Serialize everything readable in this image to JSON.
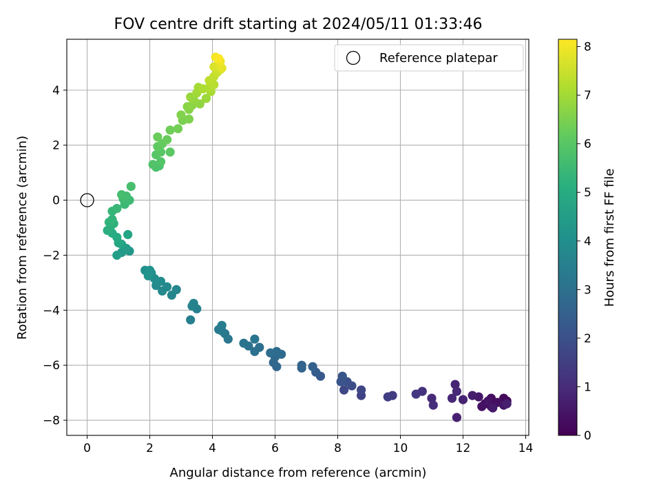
{
  "chart_data": {
    "type": "scatter",
    "title": "FOV centre drift starting at 2024/05/11 01:33:46",
    "xlabel": "Angular distance from reference (arcmin)",
    "ylabel": "Rotation from reference (arcmin)",
    "xlim": [
      -0.65,
      14.1
    ],
    "ylim": [
      -8.55,
      5.85
    ],
    "xticks": [
      0,
      2,
      4,
      6,
      8,
      10,
      12,
      14
    ],
    "yticks": [
      -8,
      -6,
      -4,
      -2,
      0,
      2,
      4
    ],
    "grid": true,
    "legend": {
      "placement": "top-right",
      "entries": [
        "Reference platepar"
      ]
    },
    "reference_point": {
      "x": 0,
      "y": 0,
      "label": "Reference platepar",
      "marker": "open-circle"
    },
    "colorbar": {
      "label": "Hours from first FF file",
      "min": 0,
      "max": 8.15,
      "ticks": [
        0,
        1,
        2,
        3,
        4,
        5,
        6,
        7,
        8
      ],
      "colormap": "viridis"
    },
    "points": [
      {
        "x": 13.0,
        "y": -7.4,
        "h": 0.05
      },
      {
        "x": 13.4,
        "y": -7.3,
        "h": 0.1
      },
      {
        "x": 12.9,
        "y": -7.5,
        "h": 0.15
      },
      {
        "x": 13.3,
        "y": -7.2,
        "h": 0.2
      },
      {
        "x": 12.7,
        "y": -7.4,
        "h": 0.25
      },
      {
        "x": 12.9,
        "y": -7.2,
        "h": 0.3
      },
      {
        "x": 13.1,
        "y": -7.35,
        "h": 0.35
      },
      {
        "x": 12.6,
        "y": -7.5,
        "h": 0.4
      },
      {
        "x": 12.8,
        "y": -7.3,
        "h": 0.45
      },
      {
        "x": 13.3,
        "y": -7.45,
        "h": 0.5
      },
      {
        "x": 12.5,
        "y": -7.15,
        "h": 0.55
      },
      {
        "x": 12.95,
        "y": -7.55,
        "h": 0.6
      },
      {
        "x": 12.3,
        "y": -7.1,
        "h": 0.65
      },
      {
        "x": 13.4,
        "y": -7.4,
        "h": 0.7
      },
      {
        "x": 11.8,
        "y": -7.9,
        "h": 0.75
      },
      {
        "x": 12.0,
        "y": -7.25,
        "h": 0.8
      },
      {
        "x": 11.75,
        "y": -6.7,
        "h": 0.85
      },
      {
        "x": 11.65,
        "y": -7.2,
        "h": 0.9
      },
      {
        "x": 11.8,
        "y": -6.95,
        "h": 0.95
      },
      {
        "x": 11.0,
        "y": -7.2,
        "h": 1.0
      },
      {
        "x": 11.05,
        "y": -7.45,
        "h": 1.1
      },
      {
        "x": 10.7,
        "y": -6.95,
        "h": 1.2
      },
      {
        "x": 10.5,
        "y": -7.05,
        "h": 1.3
      },
      {
        "x": 9.75,
        "y": -7.1,
        "h": 1.4
      },
      {
        "x": 9.6,
        "y": -7.15,
        "h": 1.5
      },
      {
        "x": 8.75,
        "y": -7.1,
        "h": 1.6
      },
      {
        "x": 8.75,
        "y": -6.9,
        "h": 1.7
      },
      {
        "x": 8.2,
        "y": -6.9,
        "h": 1.8
      },
      {
        "x": 8.45,
        "y": -6.75,
        "h": 1.9
      },
      {
        "x": 8.3,
        "y": -6.6,
        "h": 2.0
      },
      {
        "x": 8.1,
        "y": -6.6,
        "h": 2.1
      },
      {
        "x": 8.15,
        "y": -6.4,
        "h": 2.2
      },
      {
        "x": 7.45,
        "y": -6.4,
        "h": 2.3
      },
      {
        "x": 7.3,
        "y": -6.25,
        "h": 2.4
      },
      {
        "x": 7.2,
        "y": -6.05,
        "h": 2.5
      },
      {
        "x": 6.85,
        "y": -6.1,
        "h": 2.6
      },
      {
        "x": 6.85,
        "y": -6.0,
        "h": 2.65
      },
      {
        "x": 6.05,
        "y": -6.05,
        "h": 2.7
      },
      {
        "x": 5.95,
        "y": -5.9,
        "h": 2.75
      },
      {
        "x": 6.0,
        "y": -5.7,
        "h": 2.8
      },
      {
        "x": 6.2,
        "y": -5.6,
        "h": 2.85
      },
      {
        "x": 6.05,
        "y": -5.5,
        "h": 2.9
      },
      {
        "x": 5.85,
        "y": -5.55,
        "h": 2.95
      },
      {
        "x": 5.5,
        "y": -5.35,
        "h": 3.0
      },
      {
        "x": 5.35,
        "y": -5.5,
        "h": 3.05
      },
      {
        "x": 5.15,
        "y": -5.3,
        "h": 3.1
      },
      {
        "x": 5.0,
        "y": -5.2,
        "h": 3.15
      },
      {
        "x": 5.35,
        "y": -5.05,
        "h": 3.2
      },
      {
        "x": 4.5,
        "y": -5.05,
        "h": 3.25
      },
      {
        "x": 4.4,
        "y": -4.85,
        "h": 3.3
      },
      {
        "x": 4.3,
        "y": -4.75,
        "h": 3.35
      },
      {
        "x": 4.2,
        "y": -4.7,
        "h": 3.4
      },
      {
        "x": 4.3,
        "y": -4.55,
        "h": 3.45
      },
      {
        "x": 3.3,
        "y": -4.35,
        "h": 3.5
      },
      {
        "x": 3.5,
        "y": -3.95,
        "h": 3.55
      },
      {
        "x": 3.35,
        "y": -3.85,
        "h": 3.6
      },
      {
        "x": 3.4,
        "y": -3.75,
        "h": 3.65
      },
      {
        "x": 2.7,
        "y": -3.45,
        "h": 3.7
      },
      {
        "x": 2.85,
        "y": -3.25,
        "h": 3.75
      },
      {
        "x": 2.4,
        "y": -3.3,
        "h": 3.8
      },
      {
        "x": 2.55,
        "y": -3.15,
        "h": 3.85
      },
      {
        "x": 2.2,
        "y": -3.1,
        "h": 3.9
      },
      {
        "x": 2.35,
        "y": -2.95,
        "h": 3.95
      },
      {
        "x": 2.15,
        "y": -2.85,
        "h": 4.0
      },
      {
        "x": 2.05,
        "y": -2.65,
        "h": 4.05
      },
      {
        "x": 1.85,
        "y": -2.55,
        "h": 4.1
      },
      {
        "x": 2.0,
        "y": -2.55,
        "h": 4.15
      },
      {
        "x": 1.95,
        "y": -2.75,
        "h": 4.2
      },
      {
        "x": 1.35,
        "y": -1.85,
        "h": 4.3
      },
      {
        "x": 1.1,
        "y": -1.9,
        "h": 4.4
      },
      {
        "x": 1.25,
        "y": -1.75,
        "h": 4.5
      },
      {
        "x": 0.95,
        "y": -2.0,
        "h": 4.6
      },
      {
        "x": 1.1,
        "y": -1.6,
        "h": 4.7
      },
      {
        "x": 1.3,
        "y": -1.25,
        "h": 4.8
      },
      {
        "x": 1.0,
        "y": -1.55,
        "h": 4.9
      },
      {
        "x": 0.95,
        "y": -1.35,
        "h": 5.0
      },
      {
        "x": 0.8,
        "y": -1.2,
        "h": 5.1
      },
      {
        "x": 0.65,
        "y": -1.1,
        "h": 5.15
      },
      {
        "x": 0.75,
        "y": -0.95,
        "h": 5.2
      },
      {
        "x": 0.85,
        "y": -0.85,
        "h": 5.25
      },
      {
        "x": 0.7,
        "y": -0.8,
        "h": 5.3
      },
      {
        "x": 0.8,
        "y": -0.7,
        "h": 5.35
      },
      {
        "x": 0.8,
        "y": -0.4,
        "h": 5.4
      },
      {
        "x": 0.95,
        "y": -0.3,
        "h": 5.45
      },
      {
        "x": 1.2,
        "y": -0.15,
        "h": 5.5
      },
      {
        "x": 1.35,
        "y": 0.0,
        "h": 5.55
      },
      {
        "x": 1.15,
        "y": 0.05,
        "h": 5.6
      },
      {
        "x": 1.25,
        "y": 0.15,
        "h": 5.65
      },
      {
        "x": 1.1,
        "y": 0.2,
        "h": 5.7
      },
      {
        "x": 1.4,
        "y": 0.5,
        "h": 5.75
      },
      {
        "x": 2.2,
        "y": 1.2,
        "h": 5.8
      },
      {
        "x": 2.3,
        "y": 1.25,
        "h": 5.85
      },
      {
        "x": 2.1,
        "y": 1.3,
        "h": 5.9
      },
      {
        "x": 2.35,
        "y": 1.4,
        "h": 5.95
      },
      {
        "x": 2.2,
        "y": 1.65,
        "h": 6.0
      },
      {
        "x": 2.35,
        "y": 1.75,
        "h": 6.05
      },
      {
        "x": 2.65,
        "y": 1.75,
        "h": 6.1
      },
      {
        "x": 2.25,
        "y": 1.95,
        "h": 6.15
      },
      {
        "x": 2.4,
        "y": 2.05,
        "h": 6.2
      },
      {
        "x": 2.55,
        "y": 2.2,
        "h": 6.25
      },
      {
        "x": 2.25,
        "y": 2.3,
        "h": 6.3
      },
      {
        "x": 2.65,
        "y": 2.55,
        "h": 6.35
      },
      {
        "x": 2.9,
        "y": 2.6,
        "h": 6.4
      },
      {
        "x": 3.05,
        "y": 2.9,
        "h": 6.5
      },
      {
        "x": 3.25,
        "y": 2.95,
        "h": 6.55
      },
      {
        "x": 3.0,
        "y": 3.1,
        "h": 6.6
      },
      {
        "x": 3.25,
        "y": 3.3,
        "h": 6.65
      },
      {
        "x": 3.2,
        "y": 3.4,
        "h": 6.7
      },
      {
        "x": 3.35,
        "y": 3.45,
        "h": 6.75
      },
      {
        "x": 3.6,
        "y": 3.5,
        "h": 6.8
      },
      {
        "x": 3.4,
        "y": 3.65,
        "h": 6.85
      },
      {
        "x": 3.3,
        "y": 3.75,
        "h": 6.9
      },
      {
        "x": 3.8,
        "y": 3.7,
        "h": 6.95
      },
      {
        "x": 3.5,
        "y": 3.9,
        "h": 7.0
      },
      {
        "x": 3.55,
        "y": 4.1,
        "h": 7.05
      },
      {
        "x": 3.95,
        "y": 3.95,
        "h": 7.1
      },
      {
        "x": 3.7,
        "y": 4.05,
        "h": 7.15
      },
      {
        "x": 3.9,
        "y": 4.1,
        "h": 7.2
      },
      {
        "x": 4.05,
        "y": 4.2,
        "h": 7.3
      },
      {
        "x": 3.9,
        "y": 4.35,
        "h": 7.35
      },
      {
        "x": 4.05,
        "y": 4.5,
        "h": 7.4
      },
      {
        "x": 4.15,
        "y": 4.65,
        "h": 7.5
      },
      {
        "x": 4.25,
        "y": 4.75,
        "h": 7.6
      },
      {
        "x": 4.05,
        "y": 4.85,
        "h": 7.7
      },
      {
        "x": 4.2,
        "y": 4.95,
        "h": 7.8
      },
      {
        "x": 4.3,
        "y": 4.8,
        "h": 7.85
      },
      {
        "x": 4.25,
        "y": 5.05,
        "h": 7.95
      },
      {
        "x": 4.1,
        "y": 5.2,
        "h": 8.05
      },
      {
        "x": 4.2,
        "y": 5.15,
        "h": 8.12
      }
    ]
  }
}
